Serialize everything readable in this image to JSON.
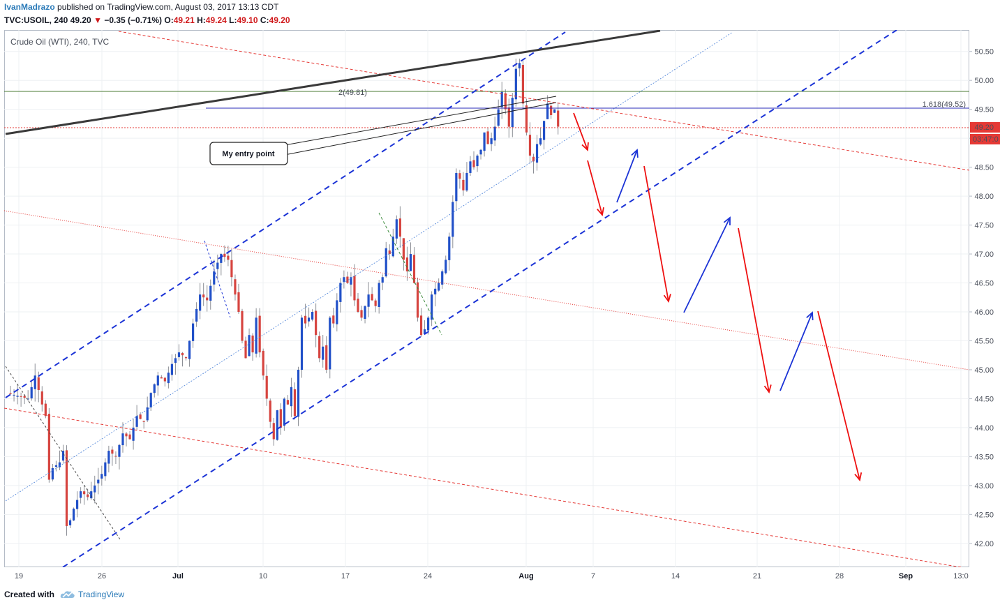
{
  "header": {
    "user": "IvanMadrazo",
    "published_text": " published on TradingView.com, August 03, 2017 13:13 CDT",
    "symbol_line": "TVC:USOIL, 240",
    "last_price": "49.20",
    "change": "−0.35 (−0.71%)",
    "open_label": "O:",
    "open": "49.21",
    "high_label": "H:",
    "high": "49.24",
    "low_label": "L:",
    "low": "49.10",
    "close_label": "C:",
    "close": "49.20"
  },
  "legend": "Crude Oil (WTI), 240, TVC",
  "footer": {
    "created": "Created with",
    "brand": "TradingView"
  },
  "colors": {
    "up": "#2150c8",
    "down": "#d6443f",
    "trend_blue": "#1c34d6",
    "arrow_red": "#ee1111",
    "arrow_blue": "#1c34d6"
  },
  "chart_data": {
    "type": "candlestick",
    "title": "Crude Oil (WTI), 240, TVC",
    "y_ticks": [
      "50.50",
      "50.00",
      "49.50",
      "49.00",
      "48.50",
      "48.00",
      "47.50",
      "47.00",
      "46.50",
      "46.00",
      "45.50",
      "45.00",
      "44.50",
      "44.00",
      "43.50",
      "43.00",
      "42.50",
      "42.00"
    ],
    "x_ticks": [
      "19",
      "26",
      "Jul",
      "10",
      "17",
      "24",
      "Aug",
      "7",
      "14",
      "21",
      "28",
      "Sep",
      "13:0"
    ],
    "ylim": [
      41.6,
      51.0
    ],
    "current_price_label": "49.20",
    "countdown_label": "03:47:0",
    "fib_label_2": "2(49.81)",
    "fib_label_1618": "1.618(49.52)",
    "annotation": "My entry point",
    "close_path": [
      [
        0,
        44.6
      ],
      [
        3,
        44.55
      ],
      [
        6,
        44.5
      ],
      [
        8,
        44.9
      ],
      [
        10,
        44.4
      ],
      [
        11,
        44.2
      ],
      [
        12,
        43.1
      ],
      [
        13,
        43.3
      ],
      [
        15,
        43.4
      ],
      [
        16,
        43.6
      ],
      [
        17,
        42.3
      ],
      [
        18,
        42.4
      ],
      [
        19,
        42.6
      ],
      [
        21,
        42.9
      ],
      [
        23,
        42.8
      ],
      [
        25,
        43.0
      ],
      [
        27,
        43.2
      ],
      [
        29,
        43.6
      ],
      [
        31,
        43.5
      ],
      [
        33,
        43.9
      ],
      [
        35,
        43.8
      ],
      [
        37,
        44.2
      ],
      [
        39,
        44.1
      ],
      [
        41,
        44.6
      ],
      [
        43,
        44.9
      ],
      [
        45,
        44.8
      ],
      [
        47,
        45.1
      ],
      [
        49,
        45.3
      ],
      [
        51,
        45.2
      ],
      [
        53,
        45.8
      ],
      [
        55,
        46.3
      ],
      [
        57,
        46.2
      ],
      [
        59,
        46.7
      ],
      [
        61,
        47.0
      ],
      [
        63,
        46.9
      ],
      [
        65,
        46.3
      ],
      [
        66,
        46.0
      ],
      [
        67,
        45.5
      ],
      [
        68,
        45.2
      ],
      [
        69,
        45.6
      ],
      [
        70,
        45.3
      ],
      [
        71,
        45.9
      ],
      [
        72,
        45.3
      ],
      [
        73,
        44.9
      ],
      [
        74,
        44.5
      ],
      [
        75,
        44.1
      ],
      [
        76,
        43.8
      ],
      [
        77,
        44.3
      ],
      [
        78,
        44.0
      ],
      [
        79,
        44.5
      ],
      [
        80,
        44.4
      ],
      [
        81,
        44.7
      ],
      [
        82,
        44.2
      ],
      [
        83,
        45.0
      ],
      [
        84,
        45.9
      ],
      [
        85,
        45.8
      ],
      [
        86,
        45.9
      ],
      [
        87,
        46.0
      ],
      [
        88,
        45.6
      ],
      [
        89,
        45.2
      ],
      [
        90,
        45.4
      ],
      [
        91,
        45.0
      ],
      [
        92,
        45.9
      ],
      [
        93,
        45.8
      ],
      [
        94,
        46.2
      ],
      [
        95,
        46.5
      ],
      [
        96,
        46.6
      ],
      [
        97,
        46.5
      ],
      [
        98,
        46.6
      ],
      [
        99,
        46.2
      ],
      [
        100,
        46.0
      ],
      [
        101,
        45.9
      ],
      [
        102,
        46.1
      ],
      [
        103,
        46.3
      ],
      [
        104,
        46.2
      ],
      [
        105,
        46.1
      ],
      [
        106,
        46.5
      ],
      [
        107,
        46.6
      ],
      [
        108,
        47.1
      ],
      [
        109,
        47.0
      ],
      [
        110,
        47.3
      ],
      [
        111,
        47.6
      ],
      [
        112,
        47.3
      ],
      [
        113,
        46.9
      ],
      [
        114,
        46.7
      ],
      [
        115,
        47.0
      ],
      [
        116,
        46.5
      ],
      [
        117,
        45.9
      ],
      [
        118,
        45.6
      ],
      [
        119,
        45.7
      ],
      [
        120,
        45.9
      ],
      [
        121,
        46.3
      ],
      [
        122,
        46.4
      ],
      [
        123,
        46.5
      ],
      [
        124,
        46.7
      ],
      [
        125,
        46.9
      ],
      [
        126,
        47.3
      ],
      [
        127,
        47.9
      ],
      [
        128,
        48.4
      ],
      [
        129,
        48.3
      ],
      [
        130,
        48.1
      ],
      [
        131,
        48.4
      ],
      [
        132,
        48.6
      ],
      [
        133,
        48.5
      ],
      [
        134,
        48.7
      ],
      [
        135,
        48.8
      ],
      [
        136,
        49.1
      ],
      [
        137,
        48.9
      ],
      [
        138,
        49.0
      ],
      [
        139,
        49.2
      ],
      [
        140,
        49.5
      ],
      [
        141,
        49.8
      ],
      [
        142,
        49.5
      ],
      [
        143,
        49.2
      ],
      [
        144,
        49.7
      ],
      [
        145,
        50.2
      ],
      [
        146,
        50.3
      ],
      [
        147,
        49.6
      ],
      [
        148,
        49.1
      ],
      [
        149,
        48.7
      ],
      [
        150,
        48.6
      ],
      [
        151,
        48.9
      ],
      [
        152,
        49.0
      ],
      [
        153,
        49.3
      ],
      [
        154,
        49.6
      ],
      [
        155,
        49.4
      ],
      [
        156,
        49.5
      ],
      [
        157,
        49.2
      ]
    ]
  }
}
